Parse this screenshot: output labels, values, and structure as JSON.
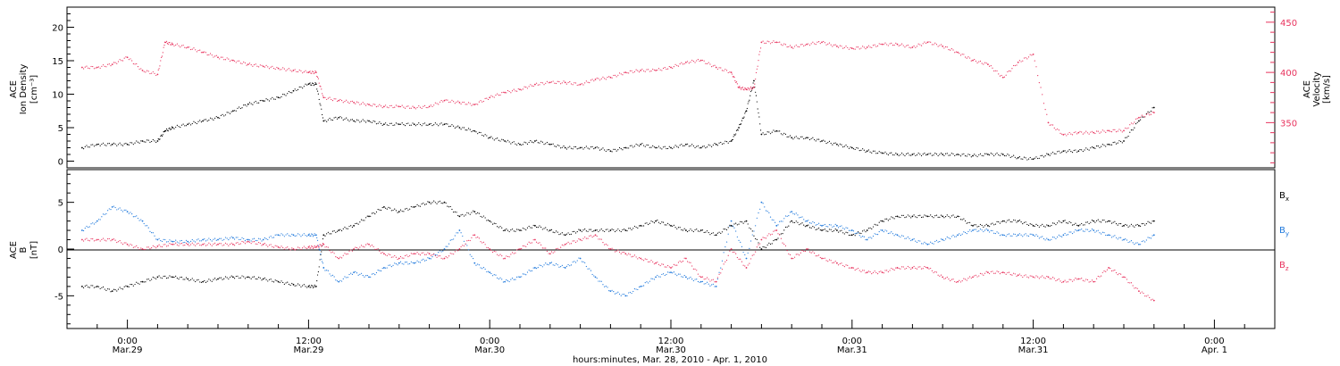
{
  "chart_data": [
    {
      "type": "scatter",
      "panel": "top",
      "ylabel_left": [
        "ACE",
        "Ion Density",
        "[cm⁻³]"
      ],
      "ylabel_right": [
        "ACE",
        "Velocity",
        "[km/s]"
      ],
      "ylim_left": [
        -1,
        23
      ],
      "ylim_right": [
        305,
        465
      ],
      "yticks_left": [
        0,
        5,
        10,
        15,
        20
      ],
      "yticks_right": [
        350,
        400,
        450
      ],
      "colors": {
        "density": "#000000",
        "velocity": "#e8335e"
      },
      "series": [
        {
          "axis": "left",
          "x": [
            -3,
            -2,
            -1,
            0,
            1,
            2,
            2.5,
            3,
            4,
            5,
            6,
            7,
            8,
            9,
            10,
            11,
            12,
            12.5,
            13,
            14,
            15,
            16,
            17,
            18,
            19,
            20,
            21,
            22,
            23,
            24,
            25,
            26,
            27,
            28,
            29,
            30,
            31,
            32,
            33,
            34,
            35,
            36,
            37,
            38,
            39,
            40,
            40.5,
            41,
            41.5,
            42,
            43,
            44,
            45,
            46,
            47,
            48,
            49,
            50,
            51,
            52,
            53,
            54,
            55,
            56,
            57,
            58,
            59,
            60,
            61,
            62,
            63,
            64,
            65,
            66,
            67,
            68
          ],
          "y": [
            2,
            2.5,
            2.5,
            2.5,
            3,
            3,
            4.5,
            5,
            5.5,
            6,
            6.5,
            7.5,
            8.5,
            9,
            9.5,
            10.5,
            11.5,
            11.5,
            6,
            6.5,
            6,
            6,
            5.5,
            5.5,
            5.5,
            5.5,
            5.5,
            5,
            4.5,
            3.5,
            3,
            2.5,
            3,
            2.5,
            2,
            2,
            2,
            1.5,
            2,
            2.5,
            2,
            2,
            2.5,
            2,
            2.5,
            3,
            5,
            7.5,
            12,
            4,
            4.5,
            3.5,
            3.5,
            3,
            2.5,
            2,
            1.5,
            1.2,
            1,
            1,
            1,
            1,
            1,
            0.8,
            1,
            1,
            0.5,
            0.3,
            1,
            1.5,
            1.5,
            2,
            2.5,
            3,
            6,
            8
          ]
        },
        {
          "axis": "right",
          "x": [
            -3,
            -2,
            -1,
            0,
            1,
            2,
            2.5,
            3,
            4,
            5,
            6,
            7,
            8,
            9,
            10,
            11,
            12,
            12.5,
            13,
            14,
            15,
            16,
            17,
            18,
            19,
            20,
            21,
            22,
            23,
            24,
            25,
            26,
            27,
            28,
            29,
            30,
            31,
            32,
            33,
            34,
            35,
            36,
            37,
            38,
            39,
            40,
            40.5,
            41,
            41.5,
            42,
            43,
            44,
            45,
            46,
            47,
            48,
            49,
            50,
            51,
            52,
            53,
            54,
            55,
            56,
            57,
            58,
            59,
            60,
            61,
            62,
            63,
            64,
            65,
            66,
            67,
            68
          ],
          "y": [
            405,
            405,
            408,
            415,
            402,
            398,
            430,
            428,
            425,
            420,
            415,
            412,
            408,
            406,
            404,
            402,
            400,
            400,
            375,
            372,
            370,
            368,
            366,
            366,
            365,
            366,
            372,
            370,
            368,
            375,
            380,
            383,
            388,
            390,
            390,
            388,
            393,
            395,
            400,
            402,
            402,
            405,
            410,
            412,
            405,
            400,
            385,
            383,
            385,
            430,
            430,
            425,
            428,
            430,
            426,
            424,
            425,
            428,
            428,
            425,
            430,
            426,
            420,
            412,
            408,
            395,
            410,
            418,
            350,
            338,
            340,
            340,
            342,
            342,
            355,
            360
          ]
        }
      ]
    },
    {
      "type": "scatter",
      "panel": "bottom",
      "ylabel": [
        "ACE",
        "B",
        "[nT]"
      ],
      "ylim": [
        -8.5,
        8.5
      ],
      "yticks": [
        -5,
        0,
        5
      ],
      "legend_placement": "right",
      "xlabel": "hours:minutes, Mar. 28, 2010 - Apr. 1, 2010",
      "xlim": [
        -4,
        76
      ],
      "xtick_labels": [
        {
          "time": "0:00",
          "date": "Mar.29"
        },
        {
          "time": "12:00",
          "date": "Mar.29"
        },
        {
          "time": "0:00",
          "date": "Mar.30"
        },
        {
          "time": "12:00",
          "date": "Mar.30"
        },
        {
          "time": "0:00",
          "date": "Mar.31"
        },
        {
          "time": "12:00",
          "date": "Mar.31"
        },
        {
          "time": "0:00",
          "date": "Apr. 1"
        }
      ],
      "series": [
        {
          "label": "B",
          "subscript": "x",
          "color": "#000000",
          "x": [
            -3,
            -2,
            -1,
            0,
            1,
            2,
            3,
            4,
            5,
            6,
            7,
            8,
            9,
            10,
            11,
            12,
            12.5,
            13,
            14,
            15,
            16,
            17,
            18,
            19,
            20,
            21,
            22,
            23,
            24,
            25,
            26,
            27,
            28,
            29,
            30,
            31,
            32,
            33,
            34,
            35,
            36,
            37,
            38,
            39,
            40,
            41,
            42,
            43,
            44,
            45,
            46,
            47,
            48,
            49,
            50,
            51,
            52,
            53,
            54,
            55,
            56,
            57,
            58,
            59,
            60,
            61,
            62,
            63,
            64,
            65,
            66,
            67,
            68
          ],
          "y": [
            -4,
            -4,
            -4.5,
            -4,
            -3.5,
            -3,
            -3,
            -3.2,
            -3.5,
            -3.2,
            -3,
            -3,
            -3.2,
            -3.5,
            -3.8,
            -4,
            -4,
            1.5,
            2,
            2.5,
            3.5,
            4.5,
            4,
            4.5,
            5,
            5,
            3.5,
            4,
            3,
            2,
            2,
            2.5,
            2,
            1.5,
            2,
            2,
            2,
            2,
            2.5,
            3,
            2.5,
            2,
            2,
            1.5,
            2.5,
            3,
            0,
            1,
            3,
            2.5,
            2,
            2,
            1.5,
            2,
            3,
            3.5,
            3.5,
            3.5,
            3.5,
            3.5,
            2.5,
            2.5,
            3,
            3,
            2.5,
            2.5,
            3,
            2.5,
            3,
            3,
            2.5,
            2.5,
            3
          ]
        },
        {
          "label": "B",
          "subscript": "y",
          "color": "#1e78dc",
          "x": [
            -3,
            -2,
            -1,
            0,
            1,
            2,
            3,
            4,
            5,
            6,
            7,
            8,
            9,
            10,
            11,
            12,
            12.5,
            13,
            14,
            15,
            16,
            17,
            18,
            19,
            20,
            21,
            22,
            23,
            24,
            25,
            26,
            27,
            28,
            29,
            30,
            31,
            32,
            33,
            34,
            35,
            36,
            37,
            38,
            39,
            40,
            41,
            42,
            43,
            44,
            45,
            46,
            47,
            48,
            49,
            50,
            51,
            52,
            53,
            54,
            55,
            56,
            57,
            58,
            59,
            60,
            61,
            62,
            63,
            64,
            65,
            66,
            67,
            68
          ],
          "y": [
            2,
            3,
            4.5,
            4,
            3,
            1,
            0.8,
            0.8,
            1,
            1,
            1.2,
            1,
            1,
            1.5,
            1.5,
            1.5,
            1.5,
            -2,
            -3.5,
            -2.5,
            -3,
            -2,
            -1.5,
            -1.5,
            -1,
            0,
            2,
            -1.5,
            -2.5,
            -3.5,
            -3,
            -2,
            -1.5,
            -2,
            -1,
            -3,
            -4.5,
            -5,
            -4,
            -3,
            -2.5,
            -3,
            -3.5,
            -4,
            3,
            -1,
            5,
            2.5,
            4,
            3,
            2.5,
            2.5,
            2,
            1,
            2,
            1.5,
            1,
            0.5,
            1,
            1.5,
            2,
            2,
            1.5,
            1.5,
            1.5,
            1,
            1.5,
            2,
            2,
            1.5,
            1,
            0.5,
            1.5
          ]
        },
        {
          "label": "B",
          "subscript": "z",
          "color": "#e8335e",
          "x": [
            -3,
            -2,
            -1,
            0,
            1,
            2,
            3,
            4,
            5,
            6,
            7,
            8,
            9,
            10,
            11,
            12,
            12.5,
            13,
            14,
            15,
            16,
            17,
            18,
            19,
            20,
            21,
            22,
            23,
            24,
            25,
            26,
            27,
            28,
            29,
            30,
            31,
            32,
            33,
            34,
            35,
            36,
            37,
            38,
            39,
            40,
            41,
            42,
            43,
            44,
            45,
            46,
            47,
            48,
            49,
            50,
            51,
            52,
            53,
            54,
            55,
            56,
            57,
            58,
            59,
            60,
            61,
            62,
            63,
            64,
            65,
            66,
            67,
            68
          ],
          "y": [
            1,
            1,
            1,
            0.5,
            0,
            0.3,
            0.5,
            0.5,
            0.5,
            0.5,
            0.5,
            0.8,
            0.5,
            0.2,
            0,
            0.2,
            0.2,
            0.5,
            -1,
            0,
            0.5,
            -0.5,
            -1,
            -0.5,
            -0.5,
            -1,
            0,
            1.5,
            0,
            -1,
            0,
            1,
            -0.5,
            0.5,
            1,
            1.5,
            0,
            -0.5,
            -1,
            -1.5,
            -2,
            -1,
            -3,
            -3.5,
            0,
            -2,
            1,
            2,
            -1,
            0,
            -1,
            -1.5,
            -2,
            -2.5,
            -2.5,
            -2,
            -2,
            -2,
            -3,
            -3.5,
            -3,
            -2.5,
            -2.5,
            -2.8,
            -3,
            -3,
            -3.5,
            -3.2,
            -3.5,
            -2,
            -3,
            -4.5,
            -5.5
          ]
        }
      ]
    }
  ]
}
